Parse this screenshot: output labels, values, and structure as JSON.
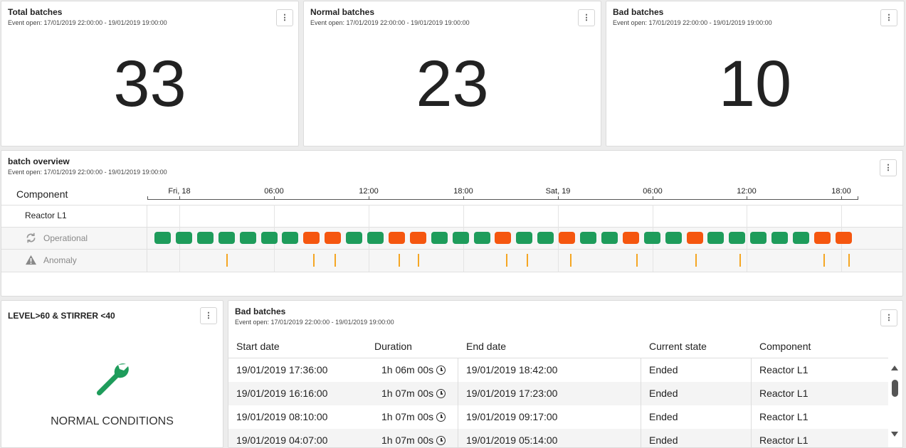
{
  "kpis": [
    {
      "title": "Total batches",
      "subtitle": "Event open: 17/01/2019 22:00:00 - 19/01/2019 19:00:00",
      "value": "33",
      "menu": "⋮"
    },
    {
      "title": "Normal batches",
      "subtitle": "Event open: 17/01/2019 22:00:00 - 19/01/2019 19:00:00",
      "value": "23",
      "menu": "⋮"
    },
    {
      "title": "Bad batches",
      "subtitle": "Event open: 17/01/2019 22:00:00 - 19/01/2019 19:00:00",
      "value": "10",
      "menu": "⋮"
    }
  ],
  "overview": {
    "title": "batch overview",
    "subtitle": "Event open: 17/01/2019 22:00:00 - 19/01/2019 19:00:00",
    "menu": "⋮",
    "component_header": "Component",
    "ticks": [
      "Fri, 18",
      "06:00",
      "12:00",
      "18:00",
      "Sat, 19",
      "06:00",
      "12:00",
      "18:00"
    ],
    "rows": {
      "reactor": "Reactor L1",
      "operational": "Operational",
      "anomaly": "Anomaly"
    },
    "operational_states": [
      "normal",
      "normal",
      "normal",
      "normal",
      "normal",
      "normal",
      "normal",
      "bad",
      "bad",
      "normal",
      "normal",
      "bad",
      "bad",
      "normal",
      "normal",
      "normal",
      "bad",
      "normal",
      "normal",
      "bad",
      "normal",
      "normal",
      "bad",
      "normal",
      "normal",
      "bad",
      "normal",
      "normal",
      "normal",
      "normal",
      "normal",
      "bad",
      "bad"
    ],
    "anomaly_count": 12,
    "colors": {
      "normal": "#1e9c5b",
      "bad": "#f5560f",
      "anomaly": "#f5a623"
    }
  },
  "rule": {
    "title": "LEVEL>60 & STIRRER <40",
    "menu": "⋮",
    "status": "NORMAL CONDITIONS",
    "icon": "wrench-icon",
    "icon_color": "#1e9c5b"
  },
  "bad_table": {
    "title": "Bad batches",
    "subtitle": "Event open: 17/01/2019 22:00:00 - 19/01/2019 19:00:00",
    "menu": "⋮",
    "columns": [
      "Start date",
      "Duration",
      "End date",
      "Current state",
      "Component"
    ],
    "rows": [
      {
        "start": "19/01/2019 17:36:00",
        "duration": "1h 06m 00s",
        "end": "19/01/2019 18:42:00",
        "state": "Ended",
        "component": "Reactor L1"
      },
      {
        "start": "19/01/2019 16:16:00",
        "duration": "1h 07m 00s",
        "end": "19/01/2019 17:23:00",
        "state": "Ended",
        "component": "Reactor L1"
      },
      {
        "start": "19/01/2019 08:10:00",
        "duration": "1h 07m 00s",
        "end": "19/01/2019 09:17:00",
        "state": "Ended",
        "component": "Reactor L1"
      },
      {
        "start": "19/01/2019 04:07:00",
        "duration": "1h 07m 00s",
        "end": "19/01/2019 05:14:00",
        "state": "Ended",
        "component": "Reactor L1"
      }
    ]
  }
}
